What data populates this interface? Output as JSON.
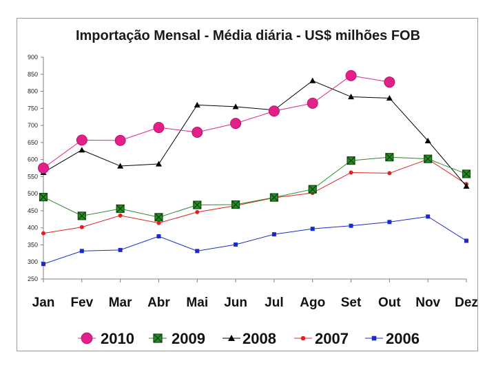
{
  "chart_data": {
    "type": "line",
    "title": "Importação Mensal - Média diária - US$ milhões FOB",
    "xlabel": "",
    "ylabel": "",
    "categories": [
      "Jan",
      "Fev",
      "Mar",
      "Abr",
      "Mai",
      "Jun",
      "Jul",
      "Ago",
      "Set",
      "Out",
      "Nov",
      "Dez"
    ],
    "ylim": [
      250,
      900
    ],
    "yticks": [
      250,
      300,
      350,
      400,
      450,
      500,
      550,
      600,
      650,
      700,
      750,
      800,
      850,
      900
    ],
    "grid": false,
    "legend_position": "bottom",
    "series": [
      {
        "name": "2010",
        "color": "#e0218a",
        "marker": "circle",
        "values": [
          575,
          657,
          656,
          694,
          680,
          706,
          742,
          765,
          846,
          827,
          null,
          null
        ]
      },
      {
        "name": "2009",
        "color": "#2a8a2a",
        "marker": "square-x",
        "values": [
          490,
          435,
          456,
          431,
          467,
          468,
          489,
          513,
          597,
          607,
          602,
          558
        ]
      },
      {
        "name": "2008",
        "color": "#000000",
        "marker": "triangle",
        "values": [
          562,
          628,
          581,
          587,
          760,
          755,
          745,
          831,
          784,
          780,
          655,
          522
        ]
      },
      {
        "name": "2007",
        "color": "#e02020",
        "marker": "dot",
        "values": [
          384,
          402,
          436,
          414,
          446,
          465,
          488,
          502,
          562,
          560,
          601,
          528
        ]
      },
      {
        "name": "2006",
        "color": "#1a2acc",
        "marker": "square",
        "values": [
          294,
          332,
          335,
          375,
          332,
          351,
          381,
          397,
          406,
          417,
          433,
          362
        ]
      }
    ]
  }
}
